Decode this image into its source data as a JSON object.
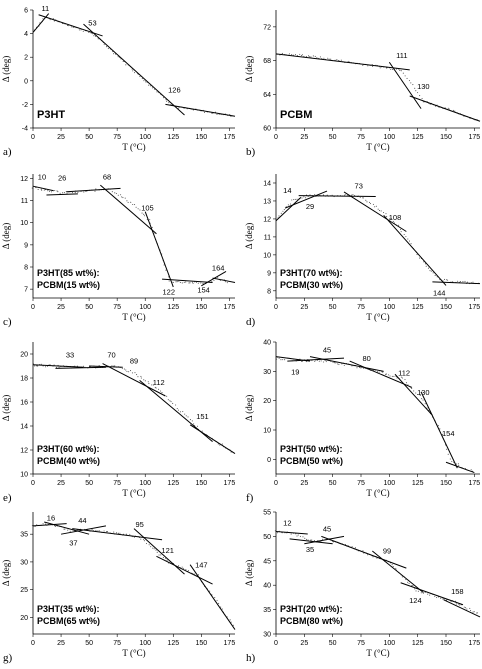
{
  "chart_data": [
    {
      "type": "scatter",
      "panel": "a)",
      "labels": [
        "P3HT"
      ],
      "ylabel": "Δ (deg)",
      "xlabel": "T (°C)",
      "xlim": [
        0,
        180
      ],
      "ylim": [
        -4,
        6
      ],
      "yticks": [
        -4,
        -2,
        0,
        2,
        4,
        6
      ],
      "xticks": [
        0,
        25,
        50,
        75,
        100,
        125,
        150,
        175
      ],
      "series": [
        {
          "x": [
            0,
            11,
            53,
            126,
            180
          ],
          "y": [
            4.2,
            5.4,
            4.0,
            -2.2,
            -3.0
          ]
        }
      ],
      "fit_segments": [
        {
          "x": [
            0,
            14
          ],
          "y": [
            4.1,
            5.7
          ]
        },
        {
          "x": [
            5,
            62
          ],
          "y": [
            5.6,
            3.8
          ]
        },
        {
          "x": [
            45,
            135
          ],
          "y": [
            4.8,
            -2.9
          ]
        },
        {
          "x": [
            118,
            180
          ],
          "y": [
            -2.0,
            -3.0
          ]
        }
      ],
      "annotations": [
        {
          "text": "11",
          "x": 11,
          "y": 5.9
        },
        {
          "text": "53",
          "x": 53,
          "y": 4.7
        },
        {
          "text": "126",
          "x": 126,
          "y": -1.0
        }
      ]
    },
    {
      "type": "scatter",
      "panel": "b)",
      "labels": [
        "PCBM"
      ],
      "ylabel": "Δ (deg)",
      "xlabel": "T (°C)",
      "xlim": [
        0,
        180
      ],
      "ylim": [
        60,
        74
      ],
      "yticks": [
        60,
        64,
        68,
        72
      ],
      "xticks": [
        0,
        25,
        50,
        75,
        100,
        125,
        150,
        175
      ],
      "series": [
        {
          "x": [
            0,
            25,
            50,
            75,
            100,
            111,
            130,
            150,
            180
          ],
          "y": [
            68.8,
            68.6,
            68.1,
            67.6,
            67.1,
            66.9,
            63.2,
            62.3,
            60.8
          ]
        }
      ],
      "fit_segments": [
        {
          "x": [
            0,
            118
          ],
          "y": [
            68.8,
            66.9
          ]
        },
        {
          "x": [
            100,
            128
          ],
          "y": [
            67.8,
            62.3
          ]
        },
        {
          "x": [
            118,
            180
          ],
          "y": [
            63.8,
            60.8
          ]
        }
      ],
      "annotations": [
        {
          "text": "111",
          "x": 111,
          "y": 68.3
        },
        {
          "text": "130",
          "x": 130,
          "y": 64.6
        }
      ]
    },
    {
      "type": "scatter",
      "panel": "c)",
      "labels": [
        "P3HT(85 wt%):",
        "PCBM(15 wt%)"
      ],
      "ylabel": "Δ (deg)",
      "xlabel": "T (°C)",
      "xlim": [
        0,
        180
      ],
      "ylim": [
        6.6,
        12.2
      ],
      "yticks": [
        7,
        8,
        9,
        10,
        11,
        12
      ],
      "xticks": [
        0,
        25,
        50,
        75,
        100,
        125,
        150,
        175
      ],
      "series": [
        {
          "x": [
            0,
            10,
            26,
            45,
            68,
            90,
            105,
            122,
            140,
            154,
            164,
            175
          ],
          "y": [
            11.6,
            11.5,
            11.35,
            11.4,
            11.55,
            10.8,
            10.0,
            7.35,
            7.3,
            7.25,
            7.5,
            7.3
          ]
        }
      ],
      "fit_segments": [
        {
          "x": [
            0,
            18
          ],
          "y": [
            11.65,
            11.45
          ]
        },
        {
          "x": [
            12,
            40
          ],
          "y": [
            11.25,
            11.3
          ]
        },
        {
          "x": [
            30,
            78
          ],
          "y": [
            11.4,
            11.55
          ]
        },
        {
          "x": [
            60,
            110
          ],
          "y": [
            11.7,
            9.5
          ]
        },
        {
          "x": [
            100,
            125
          ],
          "y": [
            10.5,
            7.1
          ]
        },
        {
          "x": [
            115,
            160
          ],
          "y": [
            7.45,
            7.3
          ]
        },
        {
          "x": [
            150,
            172
          ],
          "y": [
            7.15,
            7.8
          ]
        },
        {
          "x": [
            160,
            180
          ],
          "y": [
            7.5,
            7.3
          ]
        }
      ],
      "annotations": [
        {
          "text": "10",
          "x": 8,
          "y": 11.95
        },
        {
          "text": "26",
          "x": 26,
          "y": 11.9
        },
        {
          "text": "68",
          "x": 66,
          "y": 11.95
        },
        {
          "text": "105",
          "x": 102,
          "y": 10.55
        },
        {
          "text": "164",
          "x": 165,
          "y": 7.85
        },
        {
          "text": "122",
          "x": 121,
          "y": 6.75
        },
        {
          "text": "154",
          "x": 152,
          "y": 6.85
        }
      ]
    },
    {
      "type": "scatter",
      "panel": "d)",
      "labels": [
        "P3HT(70 wt%):",
        "PCBM(30 wt%)"
      ],
      "ylabel": "Δ (deg)",
      "xlabel": "T (°C)",
      "xlim": [
        0,
        180
      ],
      "ylim": [
        7.6,
        14.5
      ],
      "yticks": [
        8,
        9,
        10,
        11,
        12,
        13,
        14
      ],
      "xticks": [
        0,
        25,
        50,
        75,
        100,
        125,
        150,
        175
      ],
      "series": [
        {
          "x": [
            0,
            14,
            29,
            50,
            73,
            90,
            108,
            125,
            144,
            160,
            180
          ],
          "y": [
            11.9,
            13.0,
            13.3,
            13.3,
            13.3,
            12.6,
            11.6,
            10.0,
            8.6,
            8.5,
            8.4
          ]
        }
      ],
      "fit_segments": [
        {
          "x": [
            0,
            22
          ],
          "y": [
            11.9,
            13.2
          ]
        },
        {
          "x": [
            8,
            45
          ],
          "y": [
            12.6,
            13.55
          ]
        },
        {
          "x": [
            20,
            88
          ],
          "y": [
            13.3,
            13.25
          ]
        },
        {
          "x": [
            60,
            115
          ],
          "y": [
            13.5,
            11.3
          ]
        },
        {
          "x": [
            95,
            150
          ],
          "y": [
            12.2,
            8.3
          ]
        },
        {
          "x": [
            138,
            180
          ],
          "y": [
            8.5,
            8.4
          ]
        }
      ],
      "annotations": [
        {
          "text": "14",
          "x": 10,
          "y": 13.45
        },
        {
          "text": "29",
          "x": 30,
          "y": 12.55
        },
        {
          "text": "73",
          "x": 73,
          "y": 13.7
        },
        {
          "text": "108",
          "x": 105,
          "y": 11.95
        },
        {
          "text": "144",
          "x": 144,
          "y": 7.75
        }
      ]
    },
    {
      "type": "scatter",
      "panel": "e)",
      "labels": [
        "P3HT(60 wt%):",
        "PCBM(40 wt%)"
      ],
      "ylabel": "Δ (deg)",
      "xlabel": "T (°C)",
      "xlim": [
        0,
        180
      ],
      "ylim": [
        10,
        21
      ],
      "yticks": [
        10,
        12,
        14,
        16,
        18,
        20
      ],
      "xticks": [
        0,
        25,
        50,
        75,
        100,
        125,
        150,
        175
      ],
      "series": [
        {
          "x": [
            0,
            33,
            50,
            70,
            89,
            112,
            130,
            151,
            180
          ],
          "y": [
            19.1,
            18.9,
            18.9,
            19.0,
            18.5,
            17.0,
            15.4,
            13.5,
            11.7
          ]
        }
      ],
      "fit_segments": [
        {
          "x": [
            0,
            45
          ],
          "y": [
            19.1,
            18.9
          ]
        },
        {
          "x": [
            20,
            65
          ],
          "y": [
            18.8,
            18.9
          ]
        },
        {
          "x": [
            50,
            80
          ],
          "y": [
            19.0,
            18.9
          ]
        },
        {
          "x": [
            62,
            118
          ],
          "y": [
            19.2,
            16.5
          ]
        },
        {
          "x": [
            95,
            160
          ],
          "y": [
            17.8,
            12.7
          ]
        },
        {
          "x": [
            140,
            180
          ],
          "y": [
            14.1,
            11.7
          ]
        }
      ],
      "annotations": [
        {
          "text": "33",
          "x": 33,
          "y": 19.7
        },
        {
          "text": "70",
          "x": 70,
          "y": 19.7
        },
        {
          "text": "89",
          "x": 90,
          "y": 19.2
        },
        {
          "text": "112",
          "x": 112,
          "y": 17.4
        },
        {
          "text": "151",
          "x": 151,
          "y": 14.6
        }
      ]
    },
    {
      "type": "scatter",
      "panel": "f)",
      "labels": [
        "P3HT(50 wt%):",
        "PCBM(50 wt%)"
      ],
      "ylabel": "Δ (deg)",
      "xlabel": "T (°C)",
      "xlim": [
        0,
        180
      ],
      "ylim": [
        -5,
        40
      ],
      "yticks": [
        0,
        10,
        20,
        30,
        40
      ],
      "xticks": [
        0,
        25,
        50,
        75,
        100,
        125,
        150,
        175
      ],
      "series": [
        {
          "x": [
            0,
            19,
            45,
            80,
            112,
            130,
            145,
            154,
            165,
            175
          ],
          "y": [
            34.5,
            33.8,
            33.5,
            31.0,
            27.5,
            20.0,
            10.0,
            0.0,
            -3.0,
            -4.0
          ]
        }
      ],
      "fit_segments": [
        {
          "x": [
            0,
            30
          ],
          "y": [
            35.0,
            33.5
          ]
        },
        {
          "x": [
            10,
            60
          ],
          "y": [
            33.5,
            34.5
          ]
        },
        {
          "x": [
            30,
            95
          ],
          "y": [
            35.0,
            30.0
          ]
        },
        {
          "x": [
            65,
            120
          ],
          "y": [
            33.5,
            24.5
          ]
        },
        {
          "x": [
            105,
            138
          ],
          "y": [
            29.0,
            15.0
          ]
        },
        {
          "x": [
            128,
            160
          ],
          "y": [
            23.0,
            -3.0
          ]
        },
        {
          "x": [
            150,
            175
          ],
          "y": [
            -1.0,
            -4.5
          ]
        }
      ],
      "annotations": [
        {
          "text": "45",
          "x": 45,
          "y": 36.5
        },
        {
          "text": "80",
          "x": 80,
          "y": 33.5
        },
        {
          "text": "19",
          "x": 17,
          "y": 29.0
        },
        {
          "text": "112",
          "x": 113,
          "y": 28.5
        },
        {
          "text": "130",
          "x": 130,
          "y": 22.0
        },
        {
          "text": "154",
          "x": 152,
          "y": 8.0
        }
      ]
    },
    {
      "type": "scatter",
      "panel": "g)",
      "labels": [
        "P3HT(35 wt%):",
        "PCBM(65 wt%)"
      ],
      "ylabel": "Δ (deg)",
      "xlabel": "T (°C)",
      "xlim": [
        0,
        180
      ],
      "ylim": [
        17,
        39
      ],
      "yticks": [
        20,
        25,
        30,
        35
      ],
      "xticks": [
        0,
        25,
        50,
        75,
        100,
        125,
        150,
        175
      ],
      "series": [
        {
          "x": [
            0,
            16,
            37,
            44,
            70,
            95,
            121,
            147,
            165,
            180
          ],
          "y": [
            36.5,
            36.8,
            35.5,
            35.8,
            35.3,
            34.5,
            30.0,
            27.5,
            22.5,
            18.0
          ]
        }
      ],
      "fit_segments": [
        {
          "x": [
            0,
            30
          ],
          "y": [
            36.5,
            36.9
          ]
        },
        {
          "x": [
            10,
            50
          ],
          "y": [
            37.2,
            35.0
          ]
        },
        {
          "x": [
            25,
            65
          ],
          "y": [
            35.0,
            36.5
          ]
        },
        {
          "x": [
            35,
            115
          ],
          "y": [
            36.0,
            34.0
          ]
        },
        {
          "x": [
            90,
            135
          ],
          "y": [
            36.0,
            27.8
          ]
        },
        {
          "x": [
            110,
            160
          ],
          "y": [
            31.0,
            26.0
          ]
        },
        {
          "x": [
            140,
            180
          ],
          "y": [
            29.5,
            17.8
          ]
        }
      ],
      "annotations": [
        {
          "text": "16",
          "x": 16,
          "y": 37.5
        },
        {
          "text": "44",
          "x": 44,
          "y": 37.0
        },
        {
          "text": "37",
          "x": 36,
          "y": 33.0
        },
        {
          "text": "95",
          "x": 95,
          "y": 36.3
        },
        {
          "text": "121",
          "x": 120,
          "y": 31.6
        },
        {
          "text": "147",
          "x": 150,
          "y": 29.0
        }
      ]
    },
    {
      "type": "scatter",
      "panel": "h)",
      "labels": [
        "P3HT(20 wt%):",
        "PCBM(80 wt%)"
      ],
      "ylabel": "Δ (deg)",
      "xlabel": "T (°C)",
      "xlim": [
        0,
        180
      ],
      "ylim": [
        30,
        55
      ],
      "yticks": [
        30,
        35,
        40,
        45,
        50,
        55
      ],
      "xticks": [
        0,
        25,
        50,
        75,
        100,
        125,
        150,
        175
      ],
      "series": [
        {
          "x": [
            0,
            12,
            35,
            45,
            70,
            99,
            124,
            158,
            180
          ],
          "y": [
            51.0,
            50.8,
            48.8,
            49.5,
            47.5,
            44.8,
            39.0,
            36.5,
            34.0
          ]
        }
      ],
      "fit_segments": [
        {
          "x": [
            0,
            28
          ],
          "y": [
            51.0,
            50.5
          ]
        },
        {
          "x": [
            12,
            50
          ],
          "y": [
            49.5,
            48.5
          ]
        },
        {
          "x": [
            25,
            60
          ],
          "y": [
            48.5,
            50.0
          ]
        },
        {
          "x": [
            40,
            115
          ],
          "y": [
            50.0,
            43.5
          ]
        },
        {
          "x": [
            85,
            130
          ],
          "y": [
            47.0,
            38.5
          ]
        },
        {
          "x": [
            110,
            165
          ],
          "y": [
            40.5,
            36.0
          ]
        },
        {
          "x": [
            148,
            180
          ],
          "y": [
            37.0,
            33.5
          ]
        }
      ],
      "annotations": [
        {
          "text": "12",
          "x": 10,
          "y": 52.2
        },
        {
          "text": "45",
          "x": 45,
          "y": 51.0
        },
        {
          "text": "35",
          "x": 30,
          "y": 46.8
        },
        {
          "text": "99",
          "x": 98,
          "y": 46.5
        },
        {
          "text": "124",
          "x": 123,
          "y": 36.4
        },
        {
          "text": "158",
          "x": 160,
          "y": 38.2
        }
      ]
    }
  ]
}
